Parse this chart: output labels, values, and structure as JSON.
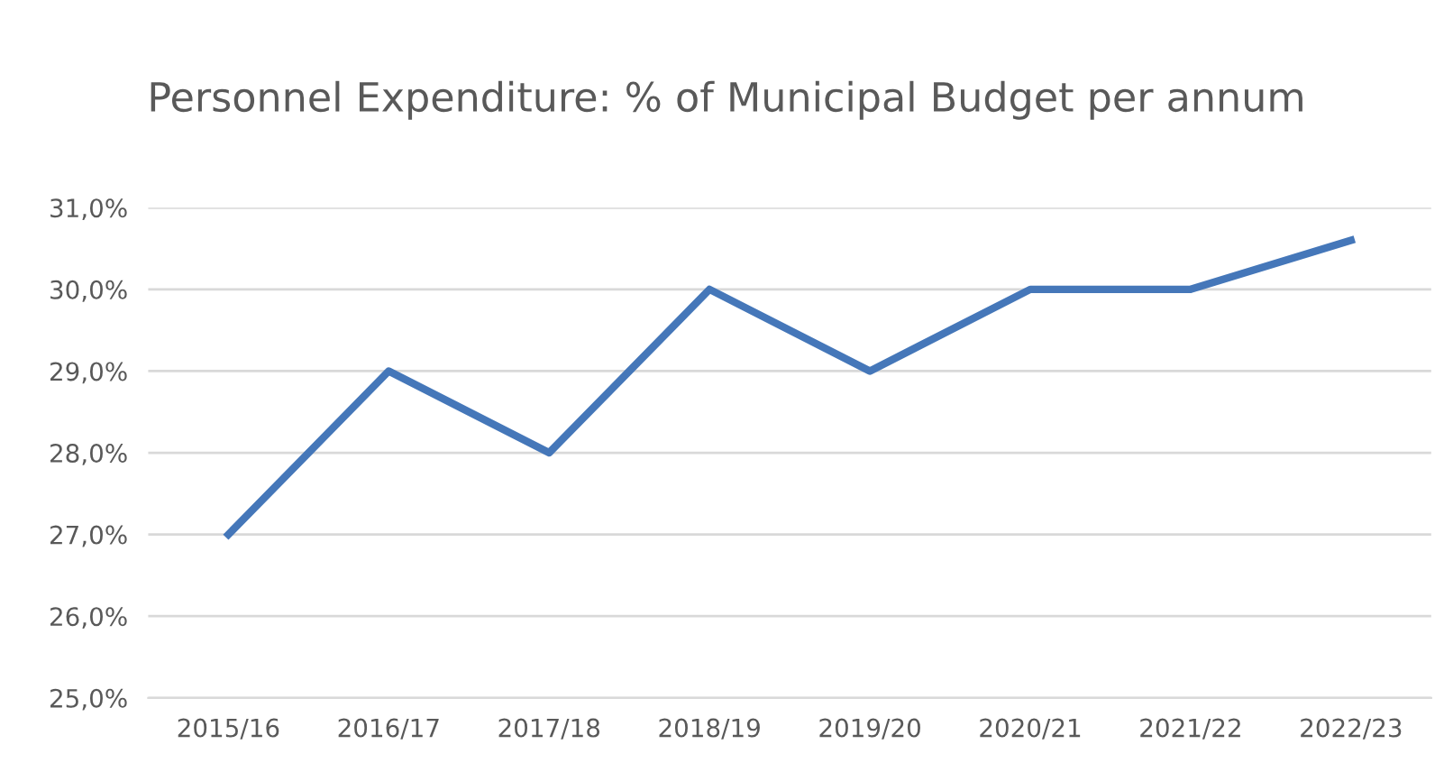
{
  "chart_data": {
    "type": "line",
    "title": "Personnel Expenditure: % of Municipal Budget per annum",
    "categories": [
      "2015/16",
      "2016/17",
      "2017/18",
      "2018/19",
      "2019/20",
      "2020/21",
      "2021/22",
      "2022/23"
    ],
    "series": [
      {
        "color": "#4577b9",
        "values": [
          27,
          29,
          28,
          30,
          29,
          30,
          30,
          30.6
        ]
      }
    ],
    "ylim": [
      25,
      31
    ],
    "yticks": [
      {
        "value": 25,
        "label": "25,0%"
      },
      {
        "value": 26,
        "label": "26,0%"
      },
      {
        "value": 27,
        "label": "27,0%"
      },
      {
        "value": 28,
        "label": "28,0%"
      },
      {
        "value": 29,
        "label": "29,0%"
      },
      {
        "value": 30,
        "label": "30,0%"
      },
      {
        "value": 31,
        "label": "31,0%"
      }
    ],
    "grid": "y",
    "legend": false,
    "marker": "none",
    "line_style": "solid"
  }
}
